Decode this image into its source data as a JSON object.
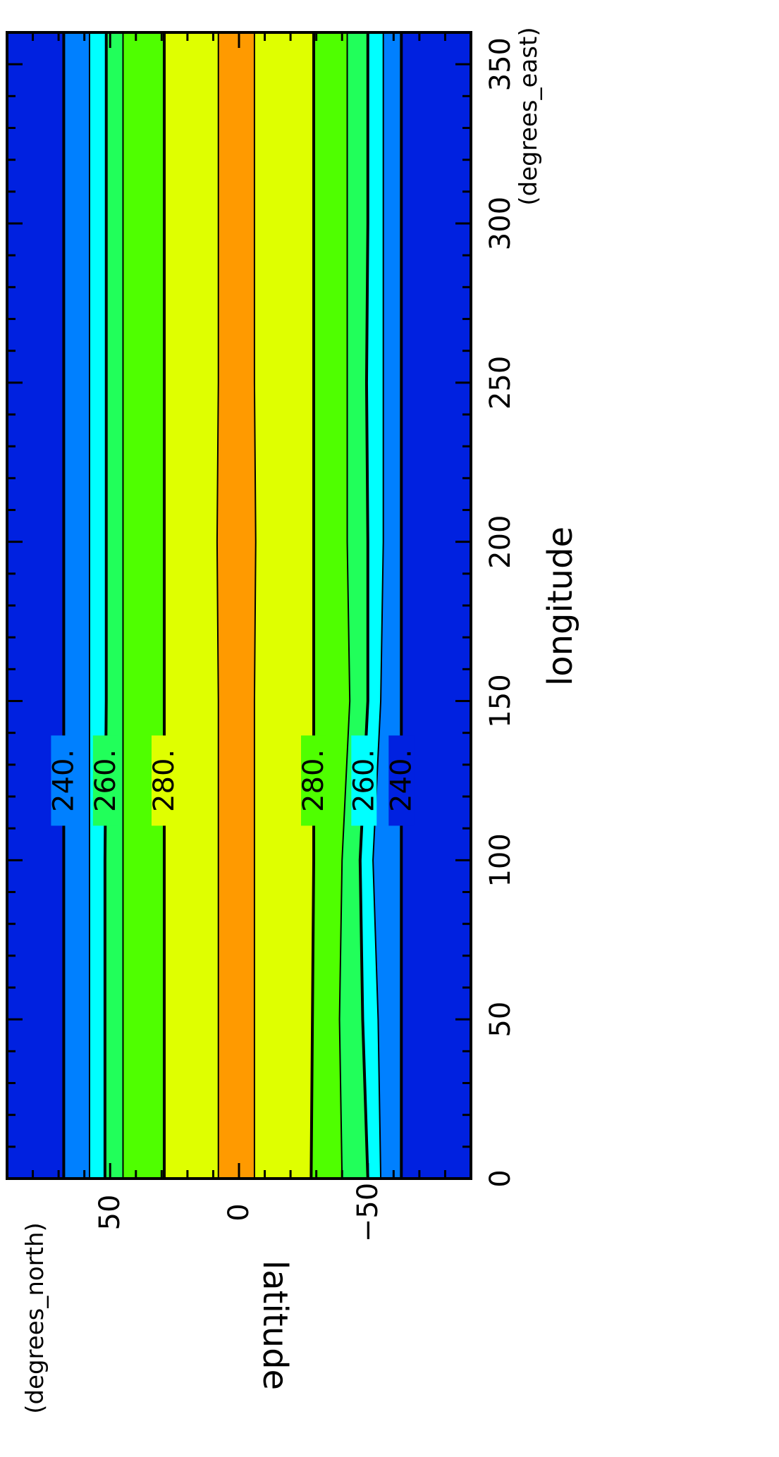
{
  "chart_data": {
    "type": "heatmap",
    "subtype": "filled-contour",
    "orientation": "rotated-90-clockwise",
    "title": "",
    "xlabel": "longitude",
    "xunits": "(degrees_east)",
    "ylabel": "latitude",
    "yunits": "(degrees_north)",
    "xlim": [
      0,
      360
    ],
    "ylim": [
      -90,
      90
    ],
    "x_ticks": [
      0,
      50,
      100,
      150,
      200,
      250,
      300,
      350
    ],
    "y_ticks": [
      50,
      0,
      -50
    ],
    "y_tick_labels": [
      "50",
      "0",
      "−50"
    ],
    "grid": false,
    "legend": "none",
    "contour_levels": [
      230,
      240,
      250,
      260,
      270,
      280,
      290
    ],
    "band_colors": {
      "below_240": "#0021e0",
      "240_250": "#0080ff",
      "250_260": "#00ffff",
      "260_270": "#21ff5a",
      "270_280": "#4fff00",
      "280_290": "#dfff00",
      "above_290": "#ff9a00",
      "below_230": "#8a00b0"
    },
    "contours": [
      {
        "level": 240,
        "label": "240.",
        "hemisphere": "north",
        "lat": [
          68,
          68,
          68,
          68,
          68,
          68,
          68,
          68
        ]
      },
      {
        "level": 250,
        "label": "",
        "hemisphere": "north",
        "lat": [
          58,
          58,
          58,
          58,
          58,
          58,
          58,
          58
        ]
      },
      {
        "level": 260,
        "label": "260.",
        "hemisphere": "north",
        "lat": [
          52,
          52,
          52,
          51.5,
          51.5,
          51.5,
          51.5,
          51.5
        ]
      },
      {
        "level": 270,
        "label": "",
        "hemisphere": "north",
        "lat": [
          45,
          45,
          45,
          45,
          45,
          45,
          45,
          45
        ]
      },
      {
        "level": 280,
        "label": "280.",
        "hemisphere": "north",
        "lat": [
          29,
          29,
          29,
          29,
          29,
          29,
          29,
          29
        ]
      },
      {
        "level": 290,
        "label": "",
        "hemisphere": "north",
        "lat": [
          8,
          8,
          8,
          8,
          8.5,
          8,
          8,
          8
        ]
      },
      {
        "level": 290,
        "label": "",
        "hemisphere": "south",
        "lat": [
          -6,
          -6,
          -6,
          -6,
          -6.5,
          -6,
          -6,
          -6
        ]
      },
      {
        "level": 280,
        "label": "280.",
        "hemisphere": "south",
        "lat": [
          -28,
          -28.5,
          -29,
          -29,
          -29,
          -29,
          -29,
          -29
        ]
      },
      {
        "level": 270,
        "label": "",
        "hemisphere": "south",
        "lat": [
          -40,
          -39,
          -40,
          -43,
          -42,
          -42,
          -42,
          -42
        ]
      },
      {
        "level": 260,
        "label": "260.",
        "hemisphere": "south",
        "lat": [
          -50,
          -48,
          -47,
          -50,
          -50,
          -49.5,
          -50,
          -50
        ]
      },
      {
        "level": 250,
        "label": "",
        "hemisphere": "south",
        "lat": [
          -55,
          -54,
          -52,
          -55,
          -56,
          -56,
          -56,
          -56
        ]
      },
      {
        "level": 240,
        "label": "240.",
        "hemisphere": "south",
        "lat": [
          -63,
          -63,
          -63,
          -63,
          -63,
          -63,
          -63,
          -63
        ]
      }
    ],
    "contour_lon": [
      0,
      50,
      100,
      150,
      200,
      250,
      300,
      360
    ]
  }
}
